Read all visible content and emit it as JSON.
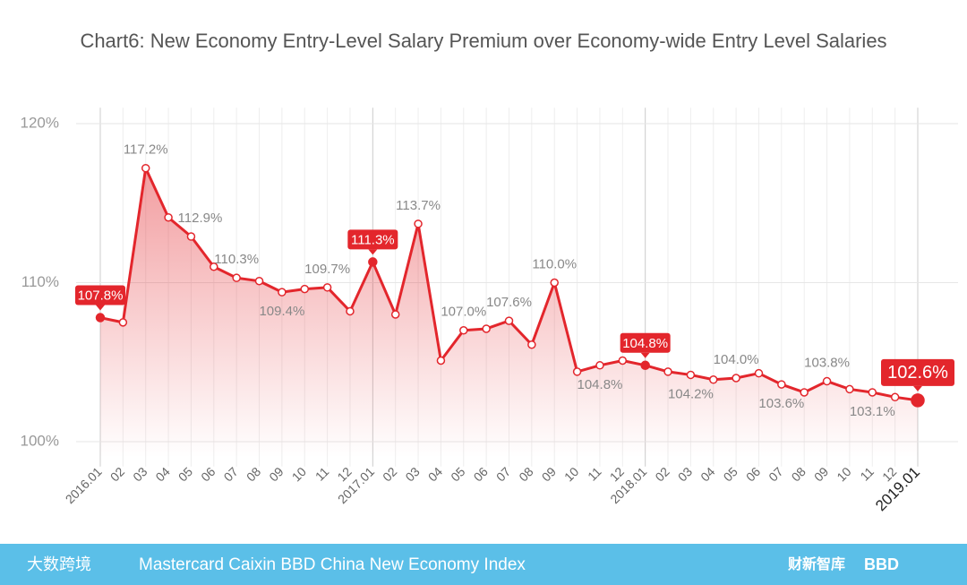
{
  "chart_data": {
    "type": "line",
    "title": "Chart6: New Economy Entry-Level Salary Premium over Economy-wide Entry Level Salaries",
    "categories": [
      "2016.01",
      "02",
      "03",
      "04",
      "05",
      "06",
      "07",
      "08",
      "09",
      "10",
      "11",
      "12",
      "2017.01",
      "02",
      "03",
      "04",
      "05",
      "06",
      "07",
      "08",
      "09",
      "10",
      "11",
      "12",
      "2018.01",
      "02",
      "03",
      "04",
      "05",
      "06",
      "07",
      "08",
      "09",
      "10",
      "11",
      "12",
      "2019.01"
    ],
    "values": [
      107.8,
      107.5,
      117.2,
      114.1,
      112.9,
      111.0,
      110.3,
      110.1,
      109.4,
      109.6,
      109.7,
      108.2,
      111.3,
      108.0,
      113.7,
      105.1,
      107.0,
      107.1,
      107.6,
      106.1,
      110.0,
      104.4,
      104.8,
      105.1,
      104.8,
      104.4,
      104.2,
      103.9,
      104.0,
      104.3,
      103.6,
      103.1,
      103.8,
      103.3,
      103.1,
      102.8,
      102.6
    ],
    "value_labels": [
      "107.8%",
      null,
      "117.2%",
      null,
      "112.9%",
      null,
      "110.3%",
      null,
      "109.4%",
      null,
      "109.7%",
      null,
      "111.3%",
      null,
      "113.7%",
      null,
      "107.0%",
      null,
      "107.6%",
      null,
      "110.0%",
      null,
      "104.8%",
      null,
      "104.8%",
      null,
      "104.2%",
      null,
      "104.0%",
      null,
      "103.6%",
      null,
      "103.8%",
      null,
      "103.1%",
      null,
      "102.6%"
    ],
    "highlighted": [
      0,
      12,
      24,
      36
    ],
    "color": "#e3262c",
    "ylim": [
      99,
      121
    ],
    "yticks": [
      {
        "value": 100,
        "label": "100%"
      },
      {
        "value": 110,
        "label": "110%"
      },
      {
        "value": 120,
        "label": "120%"
      }
    ],
    "grid": true
  },
  "footer": {
    "logo": "大数跨境",
    "text": "Mastercard Caixin BBD China New Economy Index",
    "partner1": "财新智库",
    "partner2": "BBD"
  }
}
